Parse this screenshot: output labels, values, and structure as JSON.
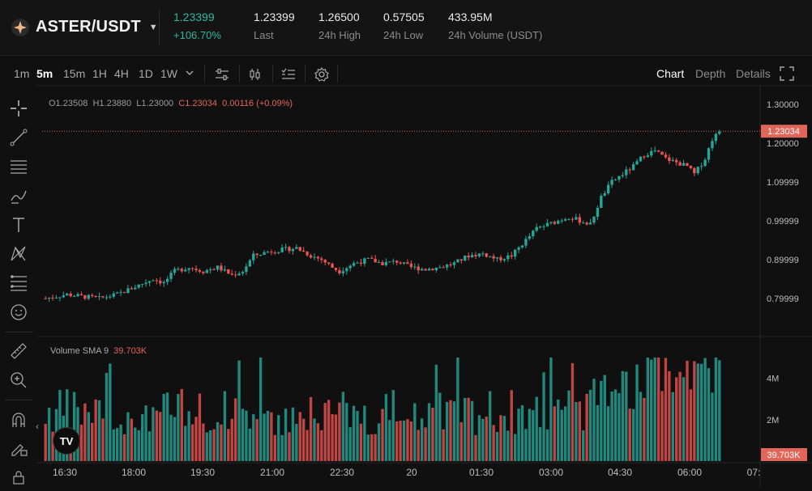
{
  "header": {
    "pair": "ASTER/USDT",
    "price": "1.23399",
    "change": "+106.70%",
    "stats": [
      {
        "value": "1.23399",
        "label": "Last"
      },
      {
        "value": "1.26500",
        "label": "24h High"
      },
      {
        "value": "0.57505",
        "label": "24h Low"
      },
      {
        "value": "433.95M",
        "label": "24h Volume (USDT)"
      }
    ]
  },
  "toolbar": {
    "timeframes": [
      "1m",
      "5m",
      "15m",
      "1H",
      "4H",
      "1D",
      "1W"
    ],
    "active_timeframe": "5m",
    "views": [
      "Chart",
      "Depth",
      "Details"
    ],
    "active_view": "Chart"
  },
  "ohlc": {
    "open": "O1.23508",
    "high": "H1.23880",
    "low": "L1.23000",
    "close": "C1.23034",
    "change": "0.00116 (+0.09%)"
  },
  "price_axis": [
    "1.30000",
    "1.20000",
    "1.09999",
    "0.99999",
    "0.89999",
    "0.79999"
  ],
  "current_price_label": "1.23034",
  "volume": {
    "label": "Volume SMA 9",
    "value": "39.703K",
    "axis": [
      "4M",
      "2M"
    ],
    "current_label": "39.703K"
  },
  "time_axis": [
    "16:30",
    "18:00",
    "19:30",
    "21:00",
    "22:30",
    "20",
    "01:30",
    "03:00",
    "04:30",
    "06:00",
    "07:"
  ],
  "colors": {
    "up": "#26a69a",
    "down": "#ef5350",
    "accent": "#2fb8a0"
  },
  "logo_text": "TV",
  "chart_data": {
    "type": "candlestick",
    "interval": "5m",
    "y_range": [
      0.76,
      1.31
    ],
    "current_price": 1.23034,
    "close_path": [
      [
        0,
        0.8
      ],
      [
        6,
        0.81
      ],
      [
        10,
        0.805
      ],
      [
        15,
        0.8
      ],
      [
        20,
        0.81
      ],
      [
        25,
        0.83
      ],
      [
        30,
        0.85
      ],
      [
        33,
        0.84
      ],
      [
        36,
        0.87
      ],
      [
        40,
        0.88
      ],
      [
        44,
        0.87
      ],
      [
        48,
        0.88
      ],
      [
        52,
        0.86
      ],
      [
        55,
        0.87
      ],
      [
        58,
        0.91
      ],
      [
        62,
        0.92
      ],
      [
        66,
        0.925
      ],
      [
        70,
        0.93
      ],
      [
        74,
        0.91
      ],
      [
        77,
        0.9
      ],
      [
        80,
        0.88
      ],
      [
        82,
        0.87
      ],
      [
        86,
        0.89
      ],
      [
        90,
        0.9
      ],
      [
        94,
        0.89
      ],
      [
        98,
        0.895
      ],
      [
        102,
        0.88
      ],
      [
        106,
        0.875
      ],
      [
        110,
        0.88
      ],
      [
        114,
        0.89
      ],
      [
        118,
        0.91
      ],
      [
        122,
        0.915
      ],
      [
        126,
        0.9
      ],
      [
        130,
        0.91
      ],
      [
        134,
        0.95
      ],
      [
        137,
        0.98
      ],
      [
        140,
        0.99
      ],
      [
        143,
        1.0
      ],
      [
        146,
        1.01
      ],
      [
        149,
        1.0
      ],
      [
        152,
        0.99
      ],
      [
        155,
        1.06
      ],
      [
        158,
        1.1
      ],
      [
        161,
        1.12
      ],
      [
        164,
        1.14
      ],
      [
        167,
        1.17
      ],
      [
        170,
        1.18
      ],
      [
        173,
        1.16
      ],
      [
        176,
        1.15
      ],
      [
        179,
        1.14
      ],
      [
        181,
        1.12
      ],
      [
        184,
        1.16
      ],
      [
        186,
        1.21
      ],
      [
        188,
        1.23
      ]
    ],
    "candle_count": 189,
    "volume_max": 5000000
  }
}
